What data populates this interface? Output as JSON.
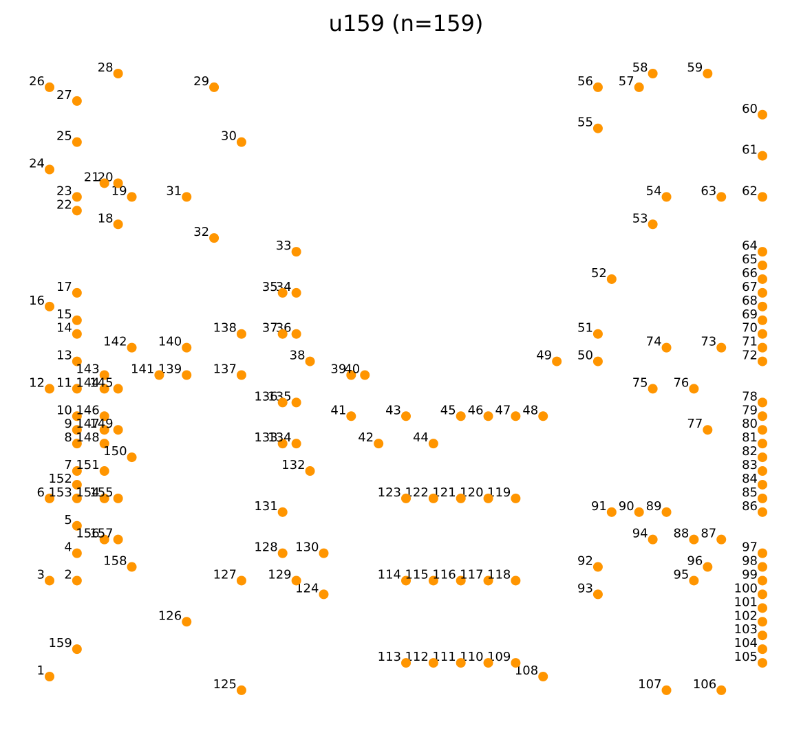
{
  "chart_data": {
    "type": "scatter",
    "title": "u159  (n=159)",
    "xlabel": "",
    "ylabel": "",
    "axes_visible": false,
    "grid": false,
    "legend": "none",
    "xlim": [
      0,
      52
    ],
    "ylim": [
      0,
      45
    ],
    "marker_color": "#FF9500",
    "label_color": "#000000",
    "points": [
      {
        "label": "1",
        "x": 0,
        "y": 0
      },
      {
        "label": "2",
        "x": 2,
        "y": 7
      },
      {
        "label": "3",
        "x": 0,
        "y": 7
      },
      {
        "label": "4",
        "x": 2,
        "y": 9
      },
      {
        "label": "5",
        "x": 2,
        "y": 11
      },
      {
        "label": "6",
        "x": 0,
        "y": 13
      },
      {
        "label": "7",
        "x": 2,
        "y": 15
      },
      {
        "label": "8",
        "x": 2,
        "y": 17
      },
      {
        "label": "9",
        "x": 2,
        "y": 18
      },
      {
        "label": "10",
        "x": 2,
        "y": 19
      },
      {
        "label": "11",
        "x": 2,
        "y": 21
      },
      {
        "label": "12",
        "x": 0,
        "y": 21
      },
      {
        "label": "13",
        "x": 2,
        "y": 23
      },
      {
        "label": "14",
        "x": 2,
        "y": 25
      },
      {
        "label": "15",
        "x": 2,
        "y": 26
      },
      {
        "label": "16",
        "x": 0,
        "y": 27
      },
      {
        "label": "17",
        "x": 2,
        "y": 28
      },
      {
        "label": "18",
        "x": 5,
        "y": 33
      },
      {
        "label": "19",
        "x": 6,
        "y": 35
      },
      {
        "label": "20",
        "x": 5,
        "y": 36
      },
      {
        "label": "21",
        "x": 4,
        "y": 36
      },
      {
        "label": "22",
        "x": 2,
        "y": 34
      },
      {
        "label": "23",
        "x": 2,
        "y": 35
      },
      {
        "label": "24",
        "x": 0,
        "y": 37
      },
      {
        "label": "25",
        "x": 2,
        "y": 39
      },
      {
        "label": "26",
        "x": 0,
        "y": 43
      },
      {
        "label": "27",
        "x": 2,
        "y": 42
      },
      {
        "label": "28",
        "x": 5,
        "y": 44
      },
      {
        "label": "29",
        "x": 12,
        "y": 43
      },
      {
        "label": "30",
        "x": 14,
        "y": 39
      },
      {
        "label": "31",
        "x": 10,
        "y": 35
      },
      {
        "label": "32",
        "x": 12,
        "y": 32
      },
      {
        "label": "33",
        "x": 18,
        "y": 31
      },
      {
        "label": "34",
        "x": 18,
        "y": 28
      },
      {
        "label": "35",
        "x": 17,
        "y": 28
      },
      {
        "label": "36",
        "x": 18,
        "y": 25
      },
      {
        "label": "37",
        "x": 17,
        "y": 25
      },
      {
        "label": "38",
        "x": 19,
        "y": 23
      },
      {
        "label": "39",
        "x": 22,
        "y": 22
      },
      {
        "label": "40",
        "x": 23,
        "y": 22
      },
      {
        "label": "41",
        "x": 22,
        "y": 19
      },
      {
        "label": "42",
        "x": 24,
        "y": 17
      },
      {
        "label": "43",
        "x": 26,
        "y": 19
      },
      {
        "label": "44",
        "x": 28,
        "y": 17
      },
      {
        "label": "45",
        "x": 30,
        "y": 19
      },
      {
        "label": "46",
        "x": 32,
        "y": 19
      },
      {
        "label": "47",
        "x": 34,
        "y": 19
      },
      {
        "label": "48",
        "x": 36,
        "y": 19
      },
      {
        "label": "49",
        "x": 37,
        "y": 23
      },
      {
        "label": "50",
        "x": 40,
        "y": 23
      },
      {
        "label": "51",
        "x": 40,
        "y": 25
      },
      {
        "label": "52",
        "x": 41,
        "y": 29
      },
      {
        "label": "53",
        "x": 44,
        "y": 33
      },
      {
        "label": "54",
        "x": 45,
        "y": 35
      },
      {
        "label": "55",
        "x": 40,
        "y": 40
      },
      {
        "label": "56",
        "x": 40,
        "y": 43
      },
      {
        "label": "57",
        "x": 43,
        "y": 43
      },
      {
        "label": "58",
        "x": 44,
        "y": 44
      },
      {
        "label": "59",
        "x": 48,
        "y": 44
      },
      {
        "label": "60",
        "x": 52,
        "y": 41
      },
      {
        "label": "61",
        "x": 52,
        "y": 38
      },
      {
        "label": "62",
        "x": 52,
        "y": 35
      },
      {
        "label": "63",
        "x": 49,
        "y": 35
      },
      {
        "label": "64",
        "x": 52,
        "y": 31
      },
      {
        "label": "65",
        "x": 52,
        "y": 30
      },
      {
        "label": "66",
        "x": 52,
        "y": 29
      },
      {
        "label": "67",
        "x": 52,
        "y": 28
      },
      {
        "label": "68",
        "x": 52,
        "y": 27
      },
      {
        "label": "69",
        "x": 52,
        "y": 26
      },
      {
        "label": "70",
        "x": 52,
        "y": 25
      },
      {
        "label": "71",
        "x": 52,
        "y": 24
      },
      {
        "label": "72",
        "x": 52,
        "y": 23
      },
      {
        "label": "73",
        "x": 49,
        "y": 24
      },
      {
        "label": "74",
        "x": 45,
        "y": 24
      },
      {
        "label": "75",
        "x": 44,
        "y": 21
      },
      {
        "label": "76",
        "x": 47,
        "y": 21
      },
      {
        "label": "77",
        "x": 48,
        "y": 18
      },
      {
        "label": "78",
        "x": 52,
        "y": 20
      },
      {
        "label": "79",
        "x": 52,
        "y": 19
      },
      {
        "label": "80",
        "x": 52,
        "y": 18
      },
      {
        "label": "81",
        "x": 52,
        "y": 17
      },
      {
        "label": "82",
        "x": 52,
        "y": 16
      },
      {
        "label": "83",
        "x": 52,
        "y": 15
      },
      {
        "label": "84",
        "x": 52,
        "y": 14
      },
      {
        "label": "85",
        "x": 52,
        "y": 13
      },
      {
        "label": "86",
        "x": 52,
        "y": 12
      },
      {
        "label": "87",
        "x": 49,
        "y": 10
      },
      {
        "label": "88",
        "x": 47,
        "y": 10
      },
      {
        "label": "89",
        "x": 45,
        "y": 12
      },
      {
        "label": "90",
        "x": 43,
        "y": 12
      },
      {
        "label": "91",
        "x": 41,
        "y": 12
      },
      {
        "label": "92",
        "x": 40,
        "y": 8
      },
      {
        "label": "93",
        "x": 40,
        "y": 6
      },
      {
        "label": "94",
        "x": 44,
        "y": 10
      },
      {
        "label": "95",
        "x": 47,
        "y": 7
      },
      {
        "label": "96",
        "x": 48,
        "y": 8
      },
      {
        "label": "97",
        "x": 52,
        "y": 9
      },
      {
        "label": "98",
        "x": 52,
        "y": 8
      },
      {
        "label": "99",
        "x": 52,
        "y": 7
      },
      {
        "label": "100",
        "x": 52,
        "y": 6
      },
      {
        "label": "101",
        "x": 52,
        "y": 5
      },
      {
        "label": "102",
        "x": 52,
        "y": 4
      },
      {
        "label": "103",
        "x": 52,
        "y": 3
      },
      {
        "label": "104",
        "x": 52,
        "y": 2
      },
      {
        "label": "105",
        "x": 52,
        "y": 1
      },
      {
        "label": "106",
        "x": 49,
        "y": -1
      },
      {
        "label": "107",
        "x": 45,
        "y": -1
      },
      {
        "label": "108",
        "x": 36,
        "y": 0
      },
      {
        "label": "109",
        "x": 34,
        "y": 1
      },
      {
        "label": "110",
        "x": 32,
        "y": 1
      },
      {
        "label": "111",
        "x": 30,
        "y": 1
      },
      {
        "label": "112",
        "x": 28,
        "y": 1
      },
      {
        "label": "113",
        "x": 26,
        "y": 1
      },
      {
        "label": "114",
        "x": 26,
        "y": 7
      },
      {
        "label": "115",
        "x": 28,
        "y": 7
      },
      {
        "label": "116",
        "x": 30,
        "y": 7
      },
      {
        "label": "117",
        "x": 32,
        "y": 7
      },
      {
        "label": "118",
        "x": 34,
        "y": 7
      },
      {
        "label": "119",
        "x": 34,
        "y": 13
      },
      {
        "label": "120",
        "x": 32,
        "y": 13
      },
      {
        "label": "121",
        "x": 30,
        "y": 13
      },
      {
        "label": "122",
        "x": 28,
        "y": 13
      },
      {
        "label": "123",
        "x": 26,
        "y": 13
      },
      {
        "label": "124",
        "x": 20,
        "y": 6
      },
      {
        "label": "125",
        "x": 14,
        "y": -1
      },
      {
        "label": "126",
        "x": 10,
        "y": 4
      },
      {
        "label": "127",
        "x": 14,
        "y": 7
      },
      {
        "label": "128",
        "x": 17,
        "y": 9
      },
      {
        "label": "129",
        "x": 18,
        "y": 7
      },
      {
        "label": "130",
        "x": 20,
        "y": 9
      },
      {
        "label": "131",
        "x": 17,
        "y": 12
      },
      {
        "label": "132",
        "x": 19,
        "y": 15
      },
      {
        "label": "133",
        "x": 17,
        "y": 17
      },
      {
        "label": "134",
        "x": 18,
        "y": 17
      },
      {
        "label": "135",
        "x": 18,
        "y": 20
      },
      {
        "label": "136",
        "x": 17,
        "y": 20
      },
      {
        "label": "137",
        "x": 14,
        "y": 22
      },
      {
        "label": "138",
        "x": 14,
        "y": 25
      },
      {
        "label": "139",
        "x": 10,
        "y": 22
      },
      {
        "label": "140",
        "x": 10,
        "y": 24
      },
      {
        "label": "141",
        "x": 8,
        "y": 22
      },
      {
        "label": "142",
        "x": 6,
        "y": 24
      },
      {
        "label": "143",
        "x": 4,
        "y": 22
      },
      {
        "label": "144",
        "x": 4,
        "y": 21
      },
      {
        "label": "145",
        "x": 5,
        "y": 21
      },
      {
        "label": "146",
        "x": 4,
        "y": 19
      },
      {
        "label": "147",
        "x": 4,
        "y": 18
      },
      {
        "label": "148",
        "x": 4,
        "y": 17
      },
      {
        "label": "149",
        "x": 5,
        "y": 18
      },
      {
        "label": "150",
        "x": 6,
        "y": 16
      },
      {
        "label": "151",
        "x": 4,
        "y": 15
      },
      {
        "label": "152",
        "x": 2,
        "y": 14
      },
      {
        "label": "153",
        "x": 2,
        "y": 13
      },
      {
        "label": "154",
        "x": 4,
        "y": 13
      },
      {
        "label": "155",
        "x": 5,
        "y": 13
      },
      {
        "label": "156",
        "x": 4,
        "y": 10
      },
      {
        "label": "157",
        "x": 5,
        "y": 10
      },
      {
        "label": "158",
        "x": 6,
        "y": 8
      },
      {
        "label": "159",
        "x": 2,
        "y": 2
      }
    ]
  }
}
